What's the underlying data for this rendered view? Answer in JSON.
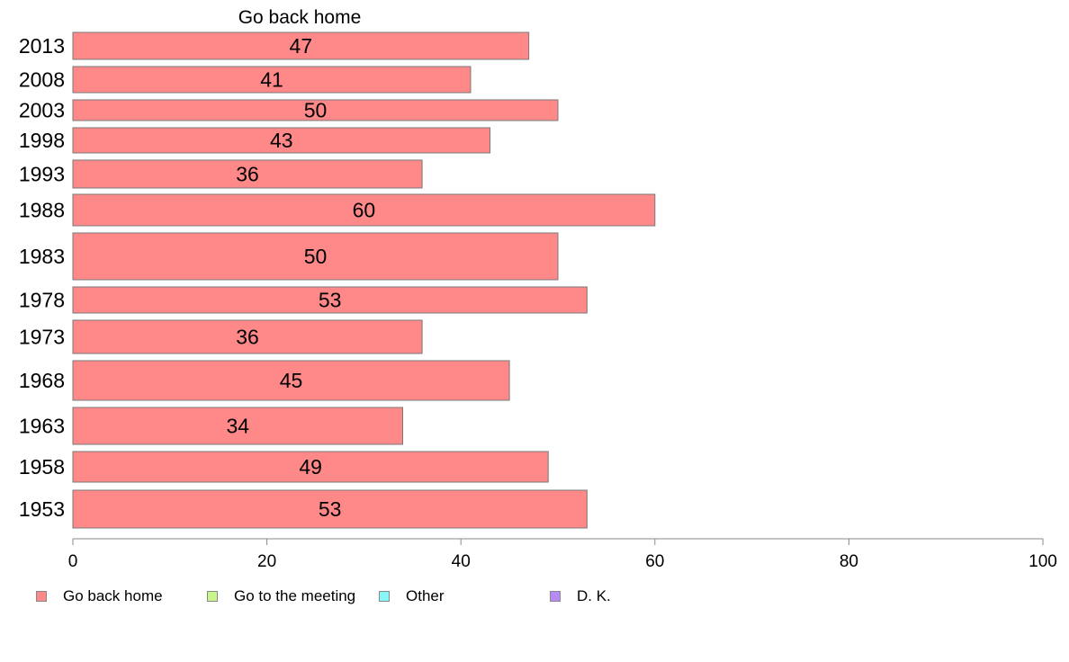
{
  "chart_data": {
    "type": "bar",
    "orientation": "horizontal",
    "title": "Go back home",
    "categories": [
      "2013",
      "2008",
      "2003",
      "1998",
      "1993",
      "1988",
      "1983",
      "1978",
      "1973",
      "1968",
      "1963",
      "1958",
      "1953"
    ],
    "series": [
      {
        "name": "Go back home",
        "color": "#ff8888",
        "values": [
          47,
          41,
          50,
          43,
          36,
          60,
          50,
          53,
          36,
          45,
          34,
          49,
          53
        ]
      }
    ],
    "xlim": [
      0,
      100
    ],
    "x_ticks": [
      "0",
      "20",
      "40",
      "60",
      "80",
      "100"
    ],
    "grid": false,
    "legend_position": "bottom-left",
    "legend": [
      {
        "label": "Go back home",
        "color": "#ff8888"
      },
      {
        "label": "Go to the meeting",
        "color": "#c8f58a"
      },
      {
        "label": "Other",
        "color": "#8af5f5"
      },
      {
        "label": "D. K.",
        "color": "#b88af5"
      }
    ]
  }
}
